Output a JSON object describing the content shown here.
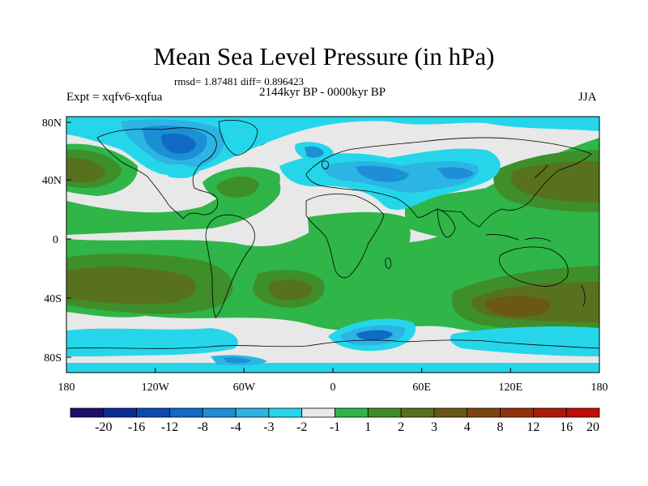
{
  "figure": {
    "title": "Mean Sea Level Pressure (in hPa)",
    "stats_line": "rmsd= 1.87481 diff= 0.896423",
    "experiment": "Expt = xqfv6-xqfua",
    "period": "2144kyr BP - 0000kyr BP",
    "season": "JJA"
  },
  "axes": {
    "x_ticks": [
      "180",
      "120W",
      "60W",
      "0",
      "60E",
      "120E",
      "180"
    ],
    "y_ticks": [
      "80N",
      "40N",
      "0",
      "40S",
      "80S"
    ]
  },
  "colorbar": {
    "colors": [
      "#1c0f6b",
      "#0b2b96",
      "#0a4bb0",
      "#0f6bc4",
      "#1c8fd6",
      "#2bb4e4",
      "#25d6ea",
      "#e8e8e8",
      "#2fb548",
      "#3e8e2a",
      "#58711f",
      "#6b5716",
      "#7d4411",
      "#93300c",
      "#ad1a08",
      "#c40b06"
    ],
    "labels": [
      "-20",
      "-16",
      "-12",
      "-8",
      "-4",
      "-3",
      "-2",
      "-1",
      "1",
      "2",
      "3",
      "4",
      "8",
      "12",
      "16",
      "20"
    ]
  },
  "map_colors": {
    "background": "#e8e8e8",
    "pos1": "#2fb548",
    "pos2": "#3e8e2a",
    "pos3": "#58711f",
    "pos4": "#6b5716",
    "pos5": "#7d4411",
    "neg1": "#25d6ea",
    "neg2": "#2bb4e4",
    "neg3": "#1c8fd6",
    "neg4": "#0f6bc4",
    "neg5": "#0a4bb0"
  }
}
